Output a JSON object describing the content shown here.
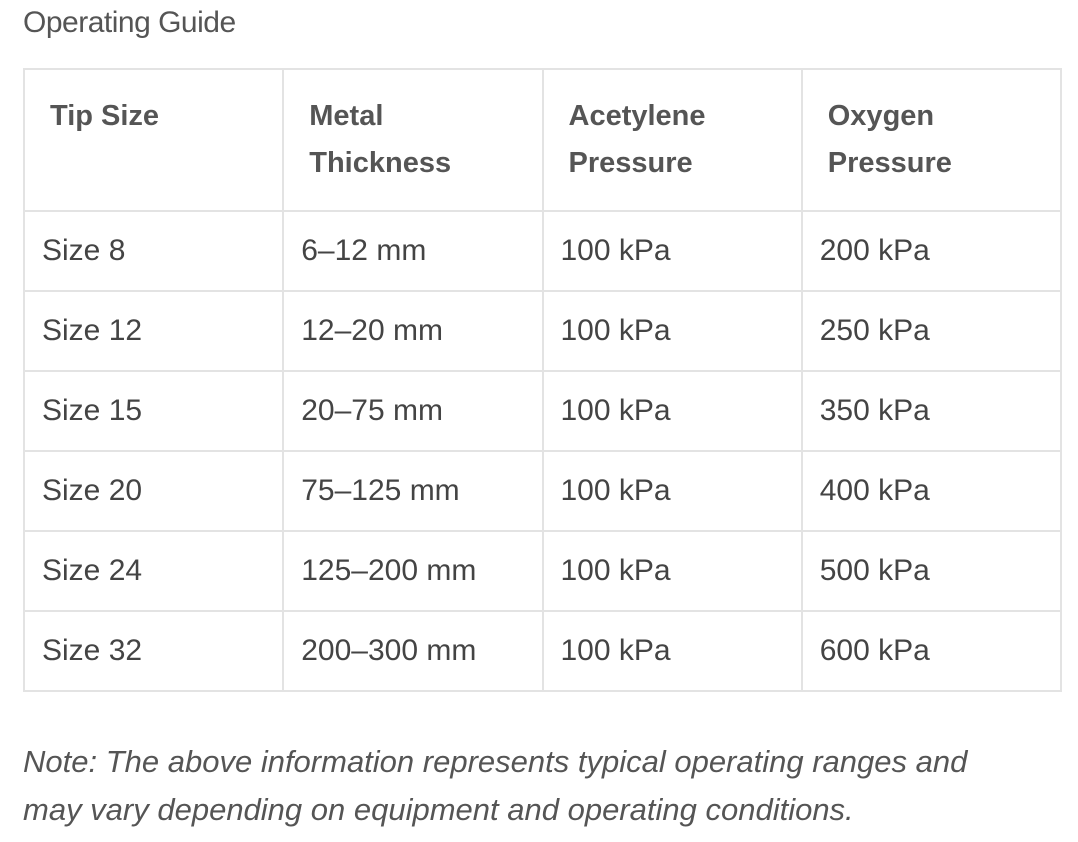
{
  "header": {
    "title": "Operating Guide"
  },
  "table": {
    "columns": [
      "Tip Size",
      "Metal Thickness",
      "Acetylene Pressure",
      "Oxygen Pressure"
    ],
    "rows": [
      [
        "Size 8",
        "6–12 mm",
        "100 kPa",
        "200 kPa"
      ],
      [
        "Size 12",
        "12–20 mm",
        "100 kPa",
        "250 kPa"
      ],
      [
        "Size 15",
        "20–75 mm",
        "100 kPa",
        "350 kPa"
      ],
      [
        "Size 20",
        "75–125 mm",
        "100 kPa",
        "400 kPa"
      ],
      [
        "Size 24",
        "125–200 mm",
        "100 kPa",
        "500 kPa"
      ],
      [
        "Size 32",
        "200–300 mm",
        "100 kPa",
        "600 kPa"
      ]
    ]
  },
  "note": "Note: The above information represents typical operating ranges and may vary depending on equipment and operating conditions."
}
